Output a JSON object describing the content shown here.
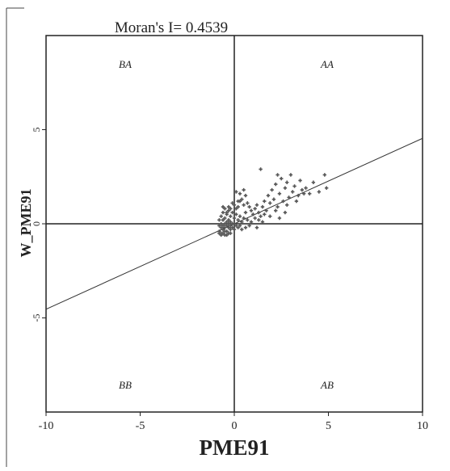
{
  "chart_data": {
    "type": "scatter",
    "title": "Moran's I= 0.4539",
    "xlabel": "PME91",
    "ylabel": "W_PME91",
    "xlim": [
      -10,
      10
    ],
    "ylim": [
      -10,
      10
    ],
    "x_ticks": [
      -10,
      -5,
      0,
      5,
      10
    ],
    "y_ticks": [
      5,
      0,
      -5
    ],
    "x_tick_labels": [
      "-10",
      "-5",
      "0",
      "5",
      "10"
    ],
    "y_tick_labels": [
      "5",
      "0",
      "-5"
    ],
    "grid": false,
    "quadrant_labels": {
      "top_left": "BA",
      "top_right": "AA",
      "bottom_left": "BB",
      "bottom_right": "AB"
    },
    "regression_line": {
      "slope": 0.4539,
      "intercept": 0.0
    },
    "point_color": "#555555",
    "points": [
      [
        -0.8,
        -0.4
      ],
      [
        -0.7,
        -0.5
      ],
      [
        -0.6,
        -0.3
      ],
      [
        -0.5,
        -0.6
      ],
      [
        -0.4,
        -0.4
      ],
      [
        -0.3,
        -0.5
      ],
      [
        -0.2,
        -0.3
      ],
      [
        -0.7,
        -0.2
      ],
      [
        -0.6,
        -0.1
      ],
      [
        -0.5,
        0.0
      ],
      [
        -0.4,
        0.1
      ],
      [
        -0.3,
        0.2
      ],
      [
        -0.2,
        0.1
      ],
      [
        -0.1,
        0.0
      ],
      [
        -0.8,
        0.2
      ],
      [
        -0.7,
        0.4
      ],
      [
        -0.6,
        0.6
      ],
      [
        -0.5,
        0.8
      ],
      [
        -0.4,
        0.5
      ],
      [
        -0.3,
        0.7
      ],
      [
        -0.2,
        0.4
      ],
      [
        -0.1,
        0.6
      ],
      [
        0.0,
        0.3
      ],
      [
        0.1,
        0.5
      ],
      [
        0.2,
        0.2
      ],
      [
        0.3,
        0.4
      ],
      [
        0.1,
        -0.1
      ],
      [
        0.2,
        -0.2
      ],
      [
        0.3,
        -0.1
      ],
      [
        0.4,
        0.1
      ],
      [
        -0.8,
        -0.1
      ],
      [
        -0.7,
        0.0
      ],
      [
        -0.6,
        0.2
      ],
      [
        -0.5,
        -0.2
      ],
      [
        -0.4,
        -0.1
      ],
      [
        -0.3,
        0.0
      ],
      [
        -0.2,
        -0.1
      ],
      [
        -0.1,
        -0.2
      ],
      [
        0.0,
        0.0
      ],
      [
        0.0,
        -0.3
      ],
      [
        -0.6,
        -0.5
      ],
      [
        -0.5,
        -0.4
      ],
      [
        -0.7,
        -0.6
      ],
      [
        -0.8,
        -0.5
      ],
      [
        -0.4,
        -0.6
      ],
      [
        -0.3,
        -0.2
      ],
      [
        -0.2,
        -0.5
      ],
      [
        0.1,
        0.8
      ],
      [
        0.0,
        1.0
      ],
      [
        0.2,
        1.2
      ],
      [
        -0.1,
        1.1
      ],
      [
        0.3,
        1.6
      ],
      [
        0.1,
        1.7
      ],
      [
        0.5,
        1.8
      ],
      [
        0.6,
        1.5
      ],
      [
        0.4,
        1.3
      ],
      [
        0.7,
        1.1
      ],
      [
        0.8,
        0.9
      ],
      [
        0.6,
        0.6
      ],
      [
        0.9,
        0.7
      ],
      [
        1.0,
        0.5
      ],
      [
        1.1,
        0.8
      ],
      [
        1.2,
        1.0
      ],
      [
        1.3,
        0.6
      ],
      [
        1.4,
        0.4
      ],
      [
        1.5,
        0.9
      ],
      [
        1.6,
        1.2
      ],
      [
        1.7,
        0.7
      ],
      [
        1.8,
        1.5
      ],
      [
        1.9,
        1.1
      ],
      [
        2.0,
        1.8
      ],
      [
        2.1,
        1.3
      ],
      [
        2.2,
        2.1
      ],
      [
        2.3,
        0.9
      ],
      [
        2.4,
        1.6
      ],
      [
        2.5,
        2.4
      ],
      [
        2.6,
        1.2
      ],
      [
        2.7,
        1.9
      ],
      [
        2.8,
        2.2
      ],
      [
        2.9,
        1.4
      ],
      [
        3.0,
        2.6
      ],
      [
        3.1,
        1.7
      ],
      [
        3.2,
        2.0
      ],
      [
        3.4,
        1.5
      ],
      [
        3.5,
        2.3
      ],
      [
        3.6,
        1.8
      ],
      [
        3.8,
        1.9
      ],
      [
        4.0,
        1.6
      ],
      [
        4.2,
        2.2
      ],
      [
        4.5,
        1.7
      ],
      [
        4.8,
        2.6
      ],
      [
        4.9,
        1.9
      ],
      [
        0.5,
        0.3
      ],
      [
        0.7,
        0.2
      ],
      [
        0.9,
        0.1
      ],
      [
        1.1,
        0.3
      ],
      [
        1.3,
        0.2
      ],
      [
        1.6,
        0.5
      ],
      [
        1.9,
        0.4
      ],
      [
        2.2,
        0.7
      ],
      [
        2.4,
        0.3
      ],
      [
        2.7,
        0.6
      ],
      [
        0.4,
        -0.3
      ],
      [
        0.6,
        -0.2
      ],
      [
        0.8,
        -0.1
      ],
      [
        1.2,
        -0.2
      ],
      [
        1.5,
        0.1
      ],
      [
        0.2,
        0.9
      ],
      [
        0.5,
        1.0
      ],
      [
        0.3,
        1.2
      ],
      [
        -0.5,
        0.3
      ],
      [
        -0.4,
        0.6
      ],
      [
        -0.3,
        0.9
      ],
      [
        -0.6,
        0.9
      ],
      [
        -0.2,
        0.8
      ],
      [
        1.4,
        2.9
      ],
      [
        2.3,
        2.6
      ],
      [
        3.7,
        1.6
      ],
      [
        2.8,
        1.0
      ],
      [
        3.3,
        1.2
      ]
    ]
  }
}
